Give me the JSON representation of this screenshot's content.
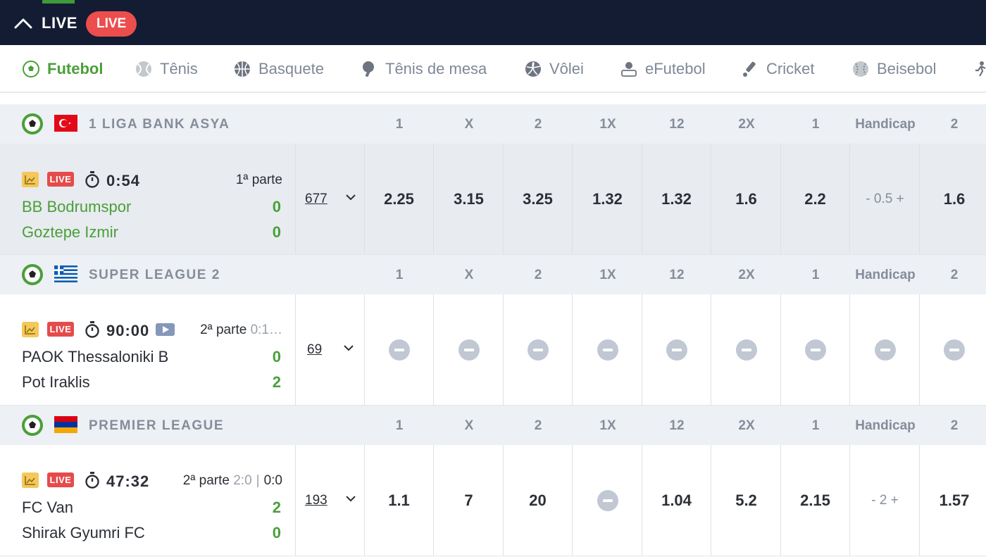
{
  "topbar": {
    "title": "LIVE",
    "badge": "LIVE"
  },
  "sports": [
    {
      "label": "Futebol",
      "icon": "soccer-ball-icon",
      "active": true
    },
    {
      "label": "Tênis",
      "icon": "tennis-ball-icon"
    },
    {
      "label": "Basquete",
      "icon": "basketball-icon"
    },
    {
      "label": "Tênis de mesa",
      "icon": "ping-pong-icon"
    },
    {
      "label": "Vôlei",
      "icon": "volleyball-icon"
    },
    {
      "label": "eFutebol",
      "icon": "esoccer-icon"
    },
    {
      "label": "Cricket",
      "icon": "cricket-bat-icon"
    },
    {
      "label": "Beisebol",
      "icon": "baseball-icon"
    }
  ],
  "columns": [
    "1",
    "X",
    "2",
    "1X",
    "12",
    "2X",
    "1",
    "Handicap",
    "2"
  ],
  "leagues": [
    {
      "name": "1 LIGA BANK ASYA",
      "country": "Turkey",
      "match": {
        "badge": "LIVE",
        "time": "0:54",
        "period": "1ª parte",
        "period_score": "",
        "half_score": "",
        "home": "BB Bodrumspor",
        "away": "Goztepe Izmir",
        "home_score": "0",
        "away_score": "0",
        "markets_count": "677",
        "odds": [
          "2.25",
          "3.15",
          "3.25",
          "1.32",
          "1.32",
          "1.6",
          "2.2",
          "- 0.5 +",
          "1.6"
        ]
      }
    },
    {
      "name": "SUPER LEAGUE 2",
      "country": "Greece",
      "match": {
        "badge": "LIVE",
        "time": "90:00",
        "period": "2ª parte",
        "period_score": "0:1…",
        "half_score": "",
        "home": "PAOK Thessaloniki B",
        "away": "Pot Iraklis",
        "home_score": "0",
        "away_score": "2",
        "markets_count": "69",
        "odds": [
          "",
          "",
          "",
          "",
          "",
          "",
          "",
          "",
          ""
        ]
      }
    },
    {
      "name": "PREMIER LEAGUE",
      "country": "Armenia",
      "match": {
        "badge": "LIVE",
        "time": "47:32",
        "period": "2ª parte",
        "period_score": "2:0",
        "separator": "|",
        "half_score": "0:0",
        "home": "FC Van",
        "away": "Shirak Gyumri FC",
        "home_score": "2",
        "away_score": "0",
        "markets_count": "193",
        "odds": [
          "1.1",
          "7",
          "20",
          "",
          "1.04",
          "5.2",
          "2.15",
          "- 2 +",
          "1.57"
        ]
      }
    }
  ],
  "colors": {
    "topbar": "#131c33",
    "live_pill": "#ec4d4d",
    "green": "#4a9f3a",
    "league_bg": "#edf0f4",
    "highlight_row": "#e8ebef",
    "locked": "#c1c8d3"
  }
}
